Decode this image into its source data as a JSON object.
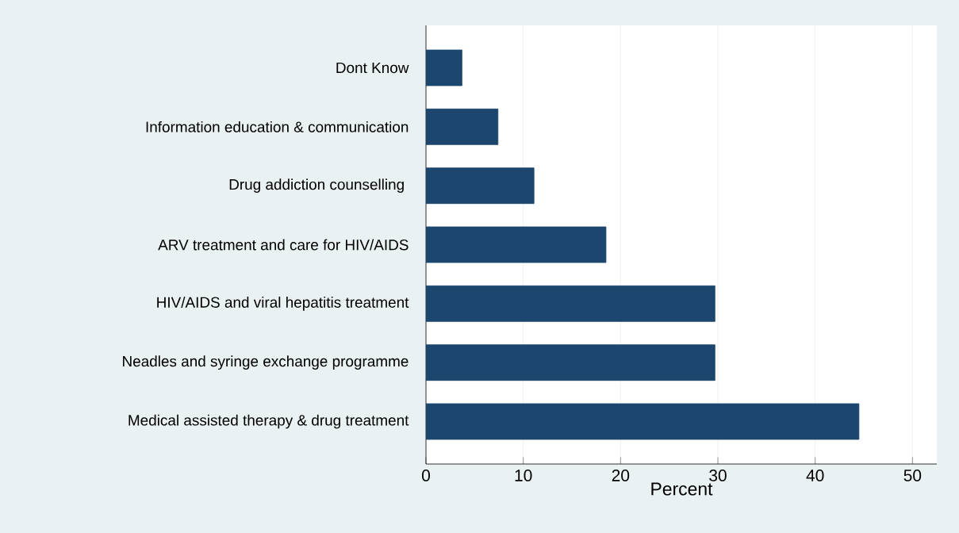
{
  "chart_data": {
    "type": "bar",
    "orientation": "horizontal",
    "categories": [
      "Dont Know",
      "Information education & communication",
      "Drug addiction counselling ",
      "ARV treatment  and care for HIV/AIDS",
      "HIV/AIDS and viral hepatitis treatment",
      "Neadles and syringe exchange programme",
      "Medical assisted therapy & drug treatment"
    ],
    "values": [
      3.7,
      7.4,
      11.1,
      18.5,
      29.7,
      29.7,
      44.5
    ],
    "color": "#1c466d",
    "xlim": [
      0,
      52.5
    ],
    "xticks": [
      0,
      10,
      20,
      30,
      40,
      50
    ],
    "xlabel": "Percent",
    "grid": "x"
  }
}
